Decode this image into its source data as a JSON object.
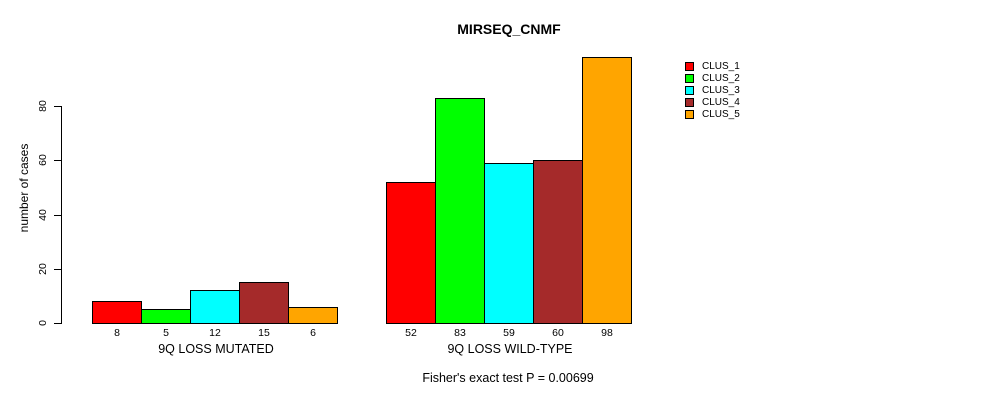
{
  "chart_data": {
    "type": "bar",
    "title": "MIRSEQ_CNMF",
    "ylabel": "number of cases",
    "footer": "Fisher's exact test P = 0.00699",
    "yticks": [
      0,
      20,
      40,
      60,
      80
    ],
    "ylim": [
      0,
      105
    ],
    "grid": false,
    "legend_position": "right",
    "categories": [
      "CLUS_1",
      "CLUS_2",
      "CLUS_3",
      "CLUS_4",
      "CLUS_5"
    ],
    "series_colors": [
      "#FF0000",
      "#00FF00",
      "#00FFFF",
      "#A52A2A",
      "#FFA500"
    ],
    "groups": [
      {
        "label": "9Q LOSS MUTATED",
        "values": [
          8,
          5,
          12,
          15,
          6
        ]
      },
      {
        "label": "9Q LOSS WILD-TYPE",
        "values": [
          52,
          83,
          59,
          60,
          98
        ]
      }
    ],
    "legend": [
      {
        "label": "CLUS_1",
        "color": "#FF0000"
      },
      {
        "label": "CLUS_2",
        "color": "#00FF00"
      },
      {
        "label": "CLUS_3",
        "color": "#00FFFF"
      },
      {
        "label": "CLUS_4",
        "color": "#A52A2A"
      },
      {
        "label": "CLUS_5",
        "color": "#FFA500"
      }
    ]
  }
}
